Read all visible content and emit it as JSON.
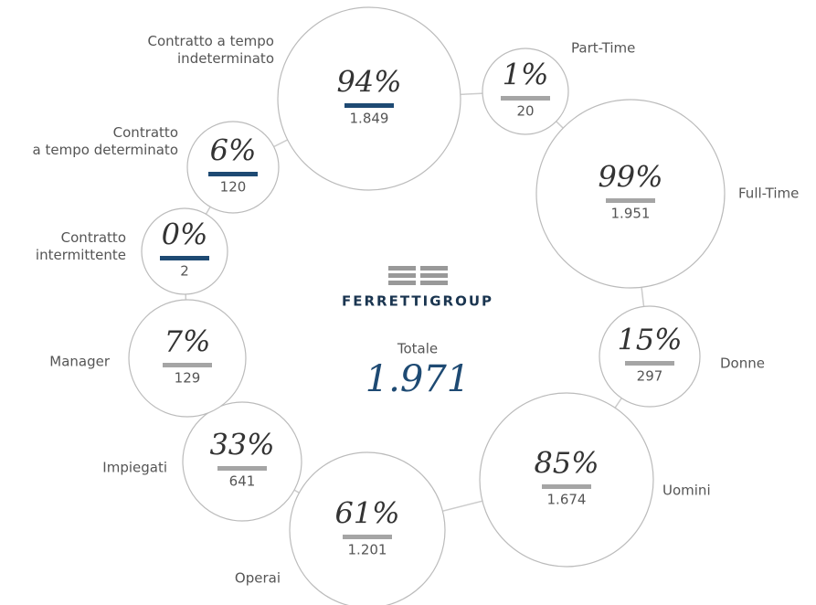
{
  "logo": "FERRETTIGROUP",
  "total": {
    "label": "Totale",
    "value": "1.971"
  },
  "nodes": [
    {
      "label": [
        "Contratto a tempo",
        "indeterminato"
      ],
      "percent": "94%",
      "count": "1.849"
    },
    {
      "label": [
        "Part-Time"
      ],
      "percent": "1%",
      "count": "20"
    },
    {
      "label": [
        "Full-Time"
      ],
      "percent": "99%",
      "count": "1.951"
    },
    {
      "label": [
        "Donne"
      ],
      "percent": "15%",
      "count": "297"
    },
    {
      "label": [
        "Uomini"
      ],
      "percent": "85%",
      "count": "1.674"
    },
    {
      "label": [
        "Operai"
      ],
      "percent": "61%",
      "count": "1.201"
    },
    {
      "label": [
        "Impiegati"
      ],
      "percent": "33%",
      "count": "641"
    },
    {
      "label": [
        "Manager"
      ],
      "percent": "7%",
      "count": "129"
    },
    {
      "label": [
        "Contratto",
        "intermittente"
      ],
      "percent": "0%",
      "count": "2"
    },
    {
      "label": [
        "Contratto",
        "a tempo determinato"
      ],
      "percent": "6%",
      "count": "120"
    }
  ]
}
